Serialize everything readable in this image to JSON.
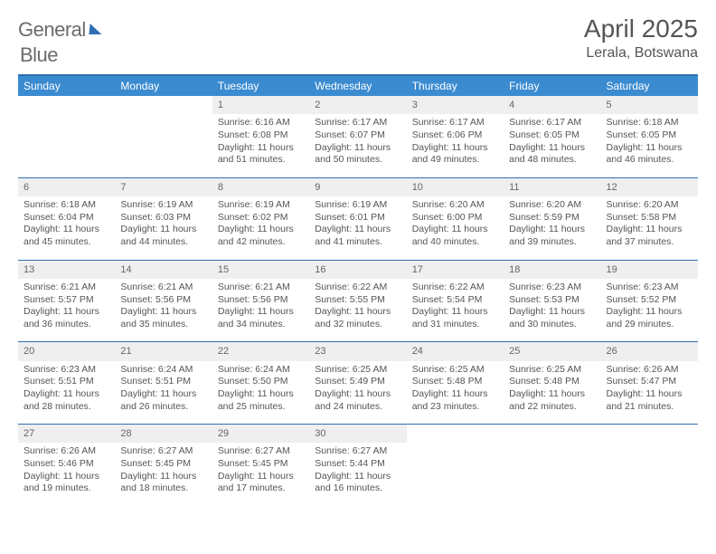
{
  "brand": {
    "word1": "General",
    "word2": "Blue"
  },
  "header": {
    "title": "April 2025",
    "location": "Lerala, Botswana"
  },
  "colors": {
    "accent": "#3b8bd0",
    "rule": "#2f6fb0",
    "header_bg": "#efefef",
    "text": "#555555"
  },
  "dow": [
    "Sunday",
    "Monday",
    "Tuesday",
    "Wednesday",
    "Thursday",
    "Friday",
    "Saturday"
  ],
  "grid": [
    [
      null,
      null,
      {
        "n": "1",
        "sr": "Sunrise: 6:16 AM",
        "ss": "Sunset: 6:08 PM",
        "dl": "Daylight: 11 hours and 51 minutes."
      },
      {
        "n": "2",
        "sr": "Sunrise: 6:17 AM",
        "ss": "Sunset: 6:07 PM",
        "dl": "Daylight: 11 hours and 50 minutes."
      },
      {
        "n": "3",
        "sr": "Sunrise: 6:17 AM",
        "ss": "Sunset: 6:06 PM",
        "dl": "Daylight: 11 hours and 49 minutes."
      },
      {
        "n": "4",
        "sr": "Sunrise: 6:17 AM",
        "ss": "Sunset: 6:05 PM",
        "dl": "Daylight: 11 hours and 48 minutes."
      },
      {
        "n": "5",
        "sr": "Sunrise: 6:18 AM",
        "ss": "Sunset: 6:05 PM",
        "dl": "Daylight: 11 hours and 46 minutes."
      }
    ],
    [
      {
        "n": "6",
        "sr": "Sunrise: 6:18 AM",
        "ss": "Sunset: 6:04 PM",
        "dl": "Daylight: 11 hours and 45 minutes."
      },
      {
        "n": "7",
        "sr": "Sunrise: 6:19 AM",
        "ss": "Sunset: 6:03 PM",
        "dl": "Daylight: 11 hours and 44 minutes."
      },
      {
        "n": "8",
        "sr": "Sunrise: 6:19 AM",
        "ss": "Sunset: 6:02 PM",
        "dl": "Daylight: 11 hours and 42 minutes."
      },
      {
        "n": "9",
        "sr": "Sunrise: 6:19 AM",
        "ss": "Sunset: 6:01 PM",
        "dl": "Daylight: 11 hours and 41 minutes."
      },
      {
        "n": "10",
        "sr": "Sunrise: 6:20 AM",
        "ss": "Sunset: 6:00 PM",
        "dl": "Daylight: 11 hours and 40 minutes."
      },
      {
        "n": "11",
        "sr": "Sunrise: 6:20 AM",
        "ss": "Sunset: 5:59 PM",
        "dl": "Daylight: 11 hours and 39 minutes."
      },
      {
        "n": "12",
        "sr": "Sunrise: 6:20 AM",
        "ss": "Sunset: 5:58 PM",
        "dl": "Daylight: 11 hours and 37 minutes."
      }
    ],
    [
      {
        "n": "13",
        "sr": "Sunrise: 6:21 AM",
        "ss": "Sunset: 5:57 PM",
        "dl": "Daylight: 11 hours and 36 minutes."
      },
      {
        "n": "14",
        "sr": "Sunrise: 6:21 AM",
        "ss": "Sunset: 5:56 PM",
        "dl": "Daylight: 11 hours and 35 minutes."
      },
      {
        "n": "15",
        "sr": "Sunrise: 6:21 AM",
        "ss": "Sunset: 5:56 PM",
        "dl": "Daylight: 11 hours and 34 minutes."
      },
      {
        "n": "16",
        "sr": "Sunrise: 6:22 AM",
        "ss": "Sunset: 5:55 PM",
        "dl": "Daylight: 11 hours and 32 minutes."
      },
      {
        "n": "17",
        "sr": "Sunrise: 6:22 AM",
        "ss": "Sunset: 5:54 PM",
        "dl": "Daylight: 11 hours and 31 minutes."
      },
      {
        "n": "18",
        "sr": "Sunrise: 6:23 AM",
        "ss": "Sunset: 5:53 PM",
        "dl": "Daylight: 11 hours and 30 minutes."
      },
      {
        "n": "19",
        "sr": "Sunrise: 6:23 AM",
        "ss": "Sunset: 5:52 PM",
        "dl": "Daylight: 11 hours and 29 minutes."
      }
    ],
    [
      {
        "n": "20",
        "sr": "Sunrise: 6:23 AM",
        "ss": "Sunset: 5:51 PM",
        "dl": "Daylight: 11 hours and 28 minutes."
      },
      {
        "n": "21",
        "sr": "Sunrise: 6:24 AM",
        "ss": "Sunset: 5:51 PM",
        "dl": "Daylight: 11 hours and 26 minutes."
      },
      {
        "n": "22",
        "sr": "Sunrise: 6:24 AM",
        "ss": "Sunset: 5:50 PM",
        "dl": "Daylight: 11 hours and 25 minutes."
      },
      {
        "n": "23",
        "sr": "Sunrise: 6:25 AM",
        "ss": "Sunset: 5:49 PM",
        "dl": "Daylight: 11 hours and 24 minutes."
      },
      {
        "n": "24",
        "sr": "Sunrise: 6:25 AM",
        "ss": "Sunset: 5:48 PM",
        "dl": "Daylight: 11 hours and 23 minutes."
      },
      {
        "n": "25",
        "sr": "Sunrise: 6:25 AM",
        "ss": "Sunset: 5:48 PM",
        "dl": "Daylight: 11 hours and 22 minutes."
      },
      {
        "n": "26",
        "sr": "Sunrise: 6:26 AM",
        "ss": "Sunset: 5:47 PM",
        "dl": "Daylight: 11 hours and 21 minutes."
      }
    ],
    [
      {
        "n": "27",
        "sr": "Sunrise: 6:26 AM",
        "ss": "Sunset: 5:46 PM",
        "dl": "Daylight: 11 hours and 19 minutes."
      },
      {
        "n": "28",
        "sr": "Sunrise: 6:27 AM",
        "ss": "Sunset: 5:45 PM",
        "dl": "Daylight: 11 hours and 18 minutes."
      },
      {
        "n": "29",
        "sr": "Sunrise: 6:27 AM",
        "ss": "Sunset: 5:45 PM",
        "dl": "Daylight: 11 hours and 17 minutes."
      },
      {
        "n": "30",
        "sr": "Sunrise: 6:27 AM",
        "ss": "Sunset: 5:44 PM",
        "dl": "Daylight: 11 hours and 16 minutes."
      },
      null,
      null,
      null
    ]
  ]
}
